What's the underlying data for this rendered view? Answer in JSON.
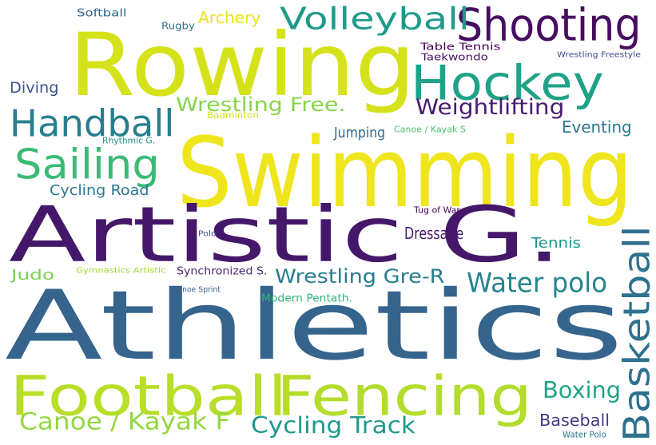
{
  "words": [
    {
      "text": "Athletics",
      "color": "#35648d"
    },
    {
      "text": "Swimming",
      "color": "#efe51c"
    },
    {
      "text": "Artistic G.",
      "color": "#45176a"
    },
    {
      "text": "Rowing",
      "color": "#d5e21a"
    },
    {
      "text": "Fencing",
      "color": "#b3dc2b"
    },
    {
      "text": "Football",
      "color": "#b8de29"
    },
    {
      "text": "Hockey",
      "color": "#1fa287"
    },
    {
      "text": "Shooting",
      "color": "#470d60"
    },
    {
      "text": "Basketball",
      "color": "#2d718e"
    },
    {
      "text": "Handball",
      "color": "#277f8e"
    },
    {
      "text": "Sailing",
      "color": "#3bbb75"
    },
    {
      "text": "Volleyball",
      "color": "#1f9a8a"
    },
    {
      "text": "Water polo",
      "color": "#25848e"
    },
    {
      "text": "Canoe / Kayak F",
      "color": "#93d741"
    },
    {
      "text": "Cycling Track",
      "color": "#1f988b"
    },
    {
      "text": "Boxing",
      "color": "#20a386"
    },
    {
      "text": "Weightlifting",
      "color": "#481d6f"
    },
    {
      "text": "Wrestling Free.",
      "color": "#86d549"
    },
    {
      "text": "Wrestling Gre-R",
      "color": "#287c8e"
    },
    {
      "text": "Eventing",
      "color": "#297a8e"
    },
    {
      "text": "Dressage",
      "color": "#481a6c"
    },
    {
      "text": "Tennis",
      "color": "#1f968b"
    },
    {
      "text": "Baseball",
      "color": "#443983"
    },
    {
      "text": "Jumping",
      "color": "#31688e"
    },
    {
      "text": "Archery",
      "color": "#e7e419"
    },
    {
      "text": "Diving",
      "color": "#3b528b"
    },
    {
      "text": "Cycling Road",
      "color": "#2a788e"
    },
    {
      "text": "Judo",
      "color": "#7ad151"
    },
    {
      "text": "Synchronized S.",
      "color": "#482878"
    },
    {
      "text": "Modern Pentath.",
      "color": "#2fb47c"
    },
    {
      "text": "Rugby",
      "color": "#2c728e"
    },
    {
      "text": "Softball",
      "color": "#31688e"
    },
    {
      "text": "Table Tennis",
      "color": "#440154"
    },
    {
      "text": "Taekwondo",
      "color": "#481467"
    },
    {
      "text": "Badminton",
      "color": "#d0e11c"
    },
    {
      "text": "Canoe / Kayak S",
      "color": "#4ac16d"
    },
    {
      "text": "Rhythmic G.",
      "color": "#21918c"
    },
    {
      "text": "Tug of War",
      "color": "#440154"
    },
    {
      "text": "Polo",
      "color": "#3b528b"
    },
    {
      "text": "Gymnastics Artistic",
      "color": "#a0da39"
    },
    {
      "text": "Canoe Sprint",
      "color": "#35608d"
    },
    {
      "text": "Wrestling Freestyle",
      "color": "#3e4a89"
    },
    {
      "text": "Water Polo",
      "color": "#2c728e"
    }
  ]
}
